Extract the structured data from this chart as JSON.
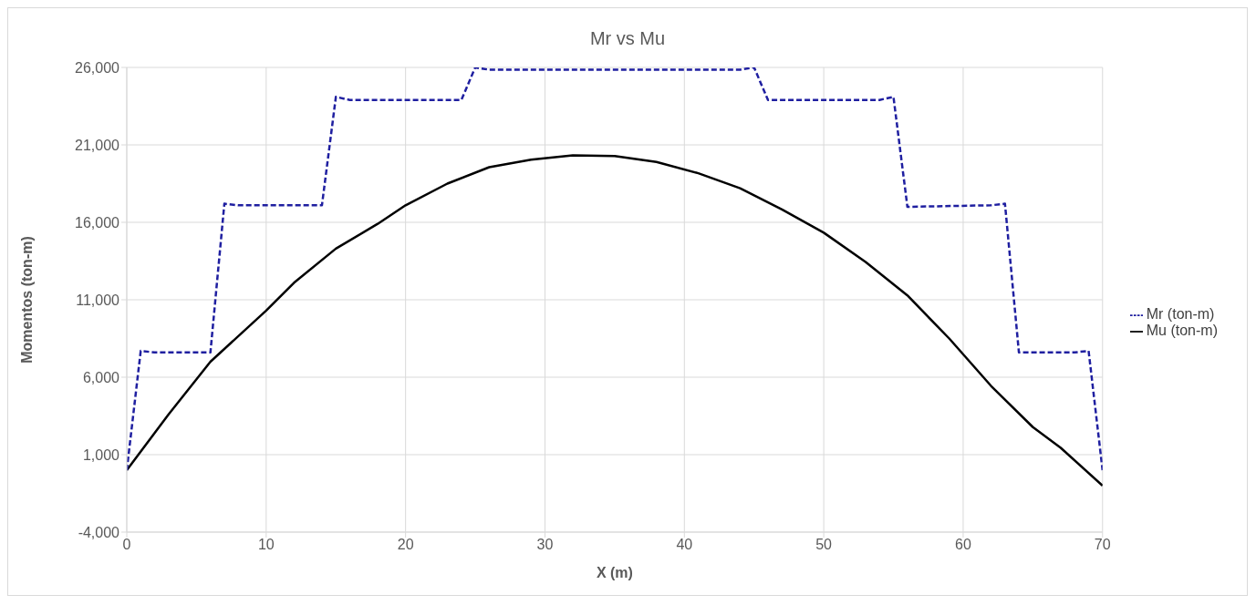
{
  "chart_data": {
    "type": "line",
    "title": "Mr vs Mu",
    "xlabel": "X (m)",
    "ylabel": "Momentos (ton-m)",
    "xlim": [
      0,
      70
    ],
    "xticks": [
      0,
      10,
      20,
      30,
      40,
      50,
      60,
      70
    ],
    "ylim": [
      -4000,
      26000
    ],
    "yticks": [
      {
        "value": -4000,
        "label": "-4,000"
      },
      {
        "value": 1000,
        "label": "1,000"
      },
      {
        "value": 6000,
        "label": "6,000"
      },
      {
        "value": 11000,
        "label": "11,000"
      },
      {
        "value": 16000,
        "label": "16,000"
      },
      {
        "value": 21000,
        "label": "21,000"
      },
      {
        "value": 26000,
        "label": "26,000"
      }
    ],
    "grid": true,
    "legend": "right",
    "marker": "none",
    "series": [
      {
        "name": "Mu (ton-m)",
        "color": "#000000",
        "line_style": "solid",
        "x": [
          0,
          3,
          6,
          10,
          12,
          15,
          18,
          20,
          23,
          26,
          29,
          32,
          35,
          38,
          41,
          44,
          47,
          50,
          53,
          56,
          59,
          62,
          65,
          67,
          70
        ],
        "values": [
          0,
          3600,
          7000,
          10300,
          12100,
          14300,
          15900,
          17100,
          18500,
          19560,
          20050,
          20330,
          20280,
          19900,
          19170,
          18200,
          16830,
          15330,
          13440,
          11280,
          8500,
          5440,
          2780,
          1440,
          -1000
        ]
      },
      {
        "name": "Mr (ton-m)",
        "color": "#1f1fa0",
        "line_style": "dashed",
        "x": [
          0,
          1,
          2,
          6,
          7,
          8,
          14,
          15,
          16,
          24,
          25,
          26,
          44,
          45,
          46,
          54,
          55,
          56,
          62,
          63,
          64,
          68,
          69,
          70
        ],
        "values": [
          0,
          7700,
          7600,
          7600,
          17200,
          17100,
          17100,
          24100,
          23900,
          23900,
          26000,
          25850,
          25850,
          26000,
          23900,
          23900,
          24100,
          17000,
          17100,
          17200,
          7600,
          7600,
          7700,
          0
        ]
      }
    ]
  }
}
